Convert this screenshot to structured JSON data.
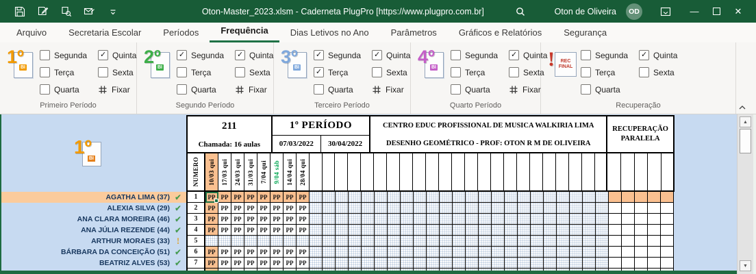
{
  "window": {
    "title": "Oton-Master_2023.xlsm - Caderneta PlugPro [https://www.plugpro.com.br]",
    "user": "Oton de Oliveira",
    "initials": "OD"
  },
  "menu": {
    "tabs": [
      "Arquivo",
      "Secretaria Escolar",
      "Períodos",
      "Frequência",
      "Dias Letivos no Ano",
      "Parâmetros",
      "Gráficos e Relatórios",
      "Segurança"
    ],
    "active_tab": "Frequência"
  },
  "ribbon": {
    "fixar_label": "Fixar",
    "groups": [
      {
        "label": "Primeiro Período",
        "icon": "1º",
        "badge": "BI",
        "color": "#F29A00",
        "days": [
          {
            "label": "Segunda",
            "checked": false
          },
          {
            "label": "Terça",
            "checked": false
          },
          {
            "label": "Quarta",
            "checked": false
          },
          {
            "label": "Quinta",
            "checked": true
          },
          {
            "label": "Sexta",
            "checked": false
          }
        ],
        "has_fixar": true
      },
      {
        "label": "Segundo Período",
        "icon": "2º",
        "badge": "BI",
        "color": "#3DAE49",
        "days": [
          {
            "label": "Segunda",
            "checked": true
          },
          {
            "label": "Terça",
            "checked": false
          },
          {
            "label": "Quarta",
            "checked": false
          },
          {
            "label": "Quinta",
            "checked": true
          },
          {
            "label": "Sexta",
            "checked": false
          }
        ],
        "has_fixar": true
      },
      {
        "label": "Terceiro Período",
        "icon": "3º",
        "badge": "BI",
        "color": "#7FA8DC",
        "days": [
          {
            "label": "Segunda",
            "checked": true
          },
          {
            "label": "Terça",
            "checked": true
          },
          {
            "label": "Quarta",
            "checked": false
          },
          {
            "label": "Quinta",
            "checked": true
          },
          {
            "label": "Sexta",
            "checked": false
          }
        ],
        "has_fixar": true
      },
      {
        "label": "Quarto Período",
        "icon": "4º",
        "badge": "BI",
        "color": "#C45EC8",
        "days": [
          {
            "label": "Segunda",
            "checked": false
          },
          {
            "label": "Terça",
            "checked": false
          },
          {
            "label": "Quarta",
            "checked": false
          },
          {
            "label": "Quinta",
            "checked": true
          },
          {
            "label": "Sexta",
            "checked": false
          }
        ],
        "has_fixar": true
      },
      {
        "label": "Recuperação",
        "icon": "!",
        "badge": "REC FINAL",
        "color": "#C8372A",
        "days": [
          {
            "label": "Segunda",
            "checked": false
          },
          {
            "label": "Terça",
            "checked": false
          },
          {
            "label": "Quarta",
            "checked": false
          },
          {
            "label": "Quinta",
            "checked": true
          },
          {
            "label": "Sexta",
            "checked": false
          }
        ],
        "has_fixar": false
      }
    ]
  },
  "sheet": {
    "turma": "211",
    "chamada": "Chamada: 16 aulas",
    "periodo": "1º PERÍODO",
    "data_inicio": "07/03/2022",
    "data_fim": "30/04/2022",
    "escola": "CENTRO EDUC PROFISSIONAL DE MUSICA WALKIRIA LIMA",
    "disciplina": "DESENHO GEOMÉTRICO - PROF: OTON R M DE OLIVEIRA",
    "recuperacao": "RECUPERAÇÃO PARALELA",
    "numero_label": "NUMERO",
    "bimestre_icon": "1º",
    "bimestre_badge": "BI",
    "date_columns": [
      {
        "label": "10/03 qui",
        "today": true
      },
      {
        "label": "17/03 qui"
      },
      {
        "label": "24/03 qui"
      },
      {
        "label": "31/03 qui"
      },
      {
        "label": "7/04 qui"
      },
      {
        "label": "9/04 sáb",
        "saturday": true
      },
      {
        "label": "14/04 qui"
      },
      {
        "label": "28/04 qui"
      }
    ],
    "empty_main_columns": 23,
    "rec_columns": 5,
    "mark": "PP",
    "students": [
      {
        "num": "1",
        "name": "AGATHA LIMA (37)",
        "status": "ok",
        "marks": 8,
        "selected": true
      },
      {
        "num": "2",
        "name": "ALEXIA SILVA (29)",
        "status": "ok",
        "marks": 8
      },
      {
        "num": "3",
        "name": "ANA CLARA MOREIRA (46)",
        "status": "ok",
        "marks": 8
      },
      {
        "num": "4",
        "name": "ANA JÚLIA REZENDE (44)",
        "status": "ok",
        "marks": 8
      },
      {
        "num": "5",
        "name": "ARTHUR MORAES (33)",
        "status": "alert",
        "marks": 0
      },
      {
        "num": "6",
        "name": "BÁRBARA DA CONCEIÇÃO (51)",
        "status": "ok",
        "marks": 8
      },
      {
        "num": "7",
        "name": "BEATRIZ ALVES (53)",
        "status": "ok",
        "marks": 8
      }
    ]
  },
  "glyphs": {
    "check": "✓",
    "status_ok": "✔",
    "status_alert": "!",
    "scroll_up": "▲",
    "scroll_down": "▼"
  },
  "colors": {
    "titlebar_green": "#185C37",
    "accent_green": "#1E7145",
    "sheet_blue": "#C7DAF1",
    "highlight_orange": "#FAC090",
    "name_navy": "#17375E",
    "check_green": "#3F9C49",
    "alert_gold": "#DFA32E",
    "saturday_green": "#00A550"
  }
}
